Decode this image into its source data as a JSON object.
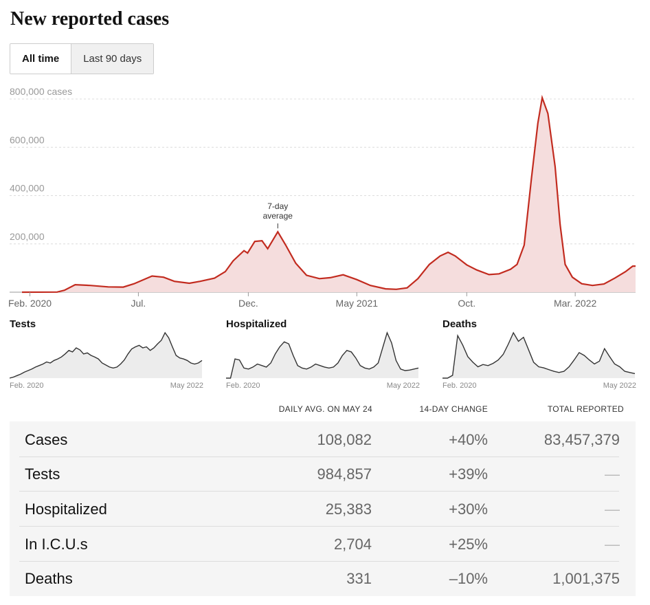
{
  "title": "New reported cases",
  "toggle": {
    "all_time": "All time",
    "last_90": "Last 90 days"
  },
  "chart_data": {
    "type": "area",
    "y_unit_label": "800,000 cases",
    "y_ticks": [
      200000,
      400000,
      600000,
      800000
    ],
    "y_tick_labels": [
      "200,000",
      "400,000",
      "600,000",
      "800,000 cases"
    ],
    "ylim": [
      0,
      800000
    ],
    "x_tick_labels": [
      "Feb. 2020",
      "Jul.",
      "Dec.",
      "May 2021",
      "Oct.",
      "Mar. 2022"
    ],
    "x_tick_dates": [
      "2020-02-01",
      "2020-07-01",
      "2020-12-01",
      "2021-05-01",
      "2021-10-01",
      "2022-03-01"
    ],
    "annotation": {
      "text_line1": "7-day",
      "text_line2": "average",
      "date": "2021-01-11",
      "value": 250000
    },
    "color": "#c22b1f",
    "fill": "#f5dddd",
    "grid": true,
    "series": [
      {
        "points": [
          [
            "2020-01-21",
            0
          ],
          [
            "2020-03-10",
            500
          ],
          [
            "2020-03-20",
            8000
          ],
          [
            "2020-04-04",
            31000
          ],
          [
            "2020-04-25",
            28000
          ],
          [
            "2020-05-20",
            22000
          ],
          [
            "2020-06-10",
            21000
          ],
          [
            "2020-06-25",
            35000
          ],
          [
            "2020-07-20",
            67000
          ],
          [
            "2020-08-05",
            62000
          ],
          [
            "2020-08-20",
            45000
          ],
          [
            "2020-09-10",
            37000
          ],
          [
            "2020-09-25",
            45000
          ],
          [
            "2020-10-15",
            58000
          ],
          [
            "2020-10-30",
            85000
          ],
          [
            "2020-11-10",
            130000
          ],
          [
            "2020-11-25",
            172000
          ],
          [
            "2020-11-30",
            162000
          ],
          [
            "2020-12-10",
            210000
          ],
          [
            "2020-12-20",
            213000
          ],
          [
            "2020-12-28",
            180000
          ],
          [
            "2021-01-11",
            250000
          ],
          [
            "2021-01-22",
            195000
          ],
          [
            "2021-02-05",
            120000
          ],
          [
            "2021-02-20",
            70000
          ],
          [
            "2021-03-10",
            56000
          ],
          [
            "2021-03-25",
            60000
          ],
          [
            "2021-04-12",
            72000
          ],
          [
            "2021-05-01",
            52000
          ],
          [
            "2021-05-20",
            28000
          ],
          [
            "2021-06-10",
            14000
          ],
          [
            "2021-06-25",
            12000
          ],
          [
            "2021-07-10",
            18000
          ],
          [
            "2021-07-25",
            56000
          ],
          [
            "2021-08-10",
            115000
          ],
          [
            "2021-08-25",
            150000
          ],
          [
            "2021-09-05",
            165000
          ],
          [
            "2021-09-15",
            150000
          ],
          [
            "2021-10-01",
            113000
          ],
          [
            "2021-10-15",
            92000
          ],
          [
            "2021-11-01",
            73000
          ],
          [
            "2021-11-15",
            76000
          ],
          [
            "2021-12-01",
            95000
          ],
          [
            "2021-12-10",
            115000
          ],
          [
            "2021-12-20",
            195000
          ],
          [
            "2021-12-30",
            470000
          ],
          [
            "2022-01-08",
            700000
          ],
          [
            "2022-01-14",
            805000
          ],
          [
            "2022-01-22",
            740000
          ],
          [
            "2022-02-01",
            520000
          ],
          [
            "2022-02-08",
            280000
          ],
          [
            "2022-02-15",
            115000
          ],
          [
            "2022-02-25",
            62000
          ],
          [
            "2022-03-10",
            35000
          ],
          [
            "2022-03-25",
            28000
          ],
          [
            "2022-04-10",
            34000
          ],
          [
            "2022-04-25",
            58000
          ],
          [
            "2022-05-10",
            85000
          ],
          [
            "2022-05-20",
            108000
          ],
          [
            "2022-05-24",
            108082
          ]
        ]
      }
    ]
  },
  "small_multiples": [
    {
      "title": "Tests",
      "start_label": "Feb. 2020",
      "end_label": "May 2022",
      "values": [
        0,
        2,
        5,
        8,
        12,
        15,
        18,
        22,
        25,
        28,
        32,
        30,
        35,
        38,
        42,
        48,
        55,
        52,
        60,
        56,
        48,
        50,
        45,
        42,
        38,
        30,
        26,
        22,
        20,
        22,
        28,
        36,
        48,
        58,
        62,
        65,
        60,
        62,
        55,
        60,
        68,
        75,
        90,
        80,
        62,
        45,
        40,
        38,
        35,
        30,
        28,
        30,
        35
      ]
    },
    {
      "title": "Hospitalized",
      "start_label": "Feb. 2020",
      "end_label": "May 2022",
      "values": [
        0,
        0,
        38,
        36,
        20,
        18,
        22,
        28,
        25,
        22,
        30,
        48,
        62,
        72,
        68,
        45,
        25,
        20,
        18,
        22,
        28,
        25,
        22,
        20,
        22,
        30,
        45,
        55,
        52,
        40,
        25,
        20,
        18,
        22,
        30,
        60,
        90,
        70,
        35,
        18,
        15,
        16,
        18,
        20
      ]
    },
    {
      "title": "Deaths",
      "start_label": "Feb. 2020",
      "end_label": "May 2022",
      "values": [
        0,
        0,
        5,
        75,
        58,
        38,
        28,
        20,
        24,
        22,
        26,
        32,
        42,
        60,
        80,
        65,
        72,
        50,
        28,
        20,
        18,
        15,
        12,
        10,
        12,
        20,
        32,
        45,
        40,
        32,
        25,
        30,
        52,
        38,
        25,
        20,
        12,
        10,
        8
      ]
    }
  ],
  "table": {
    "headers": [
      "DAILY AVG. ON MAY 24",
      "14-DAY CHANGE",
      "TOTAL REPORTED"
    ],
    "rows": [
      {
        "label": "Cases",
        "avg": "108,082",
        "change": "+40%",
        "total": "83,457,379"
      },
      {
        "label": "Tests",
        "avg": "984,857",
        "change": "+39%",
        "total": "—"
      },
      {
        "label": "Hospitalized",
        "avg": "25,383",
        "change": "+30%",
        "total": "—"
      },
      {
        "label": "In I.C.U.s",
        "avg": "2,704",
        "change": "+25%",
        "total": "—"
      },
      {
        "label": "Deaths",
        "avg": "331",
        "change": "–10%",
        "total": "1,001,375"
      }
    ]
  }
}
